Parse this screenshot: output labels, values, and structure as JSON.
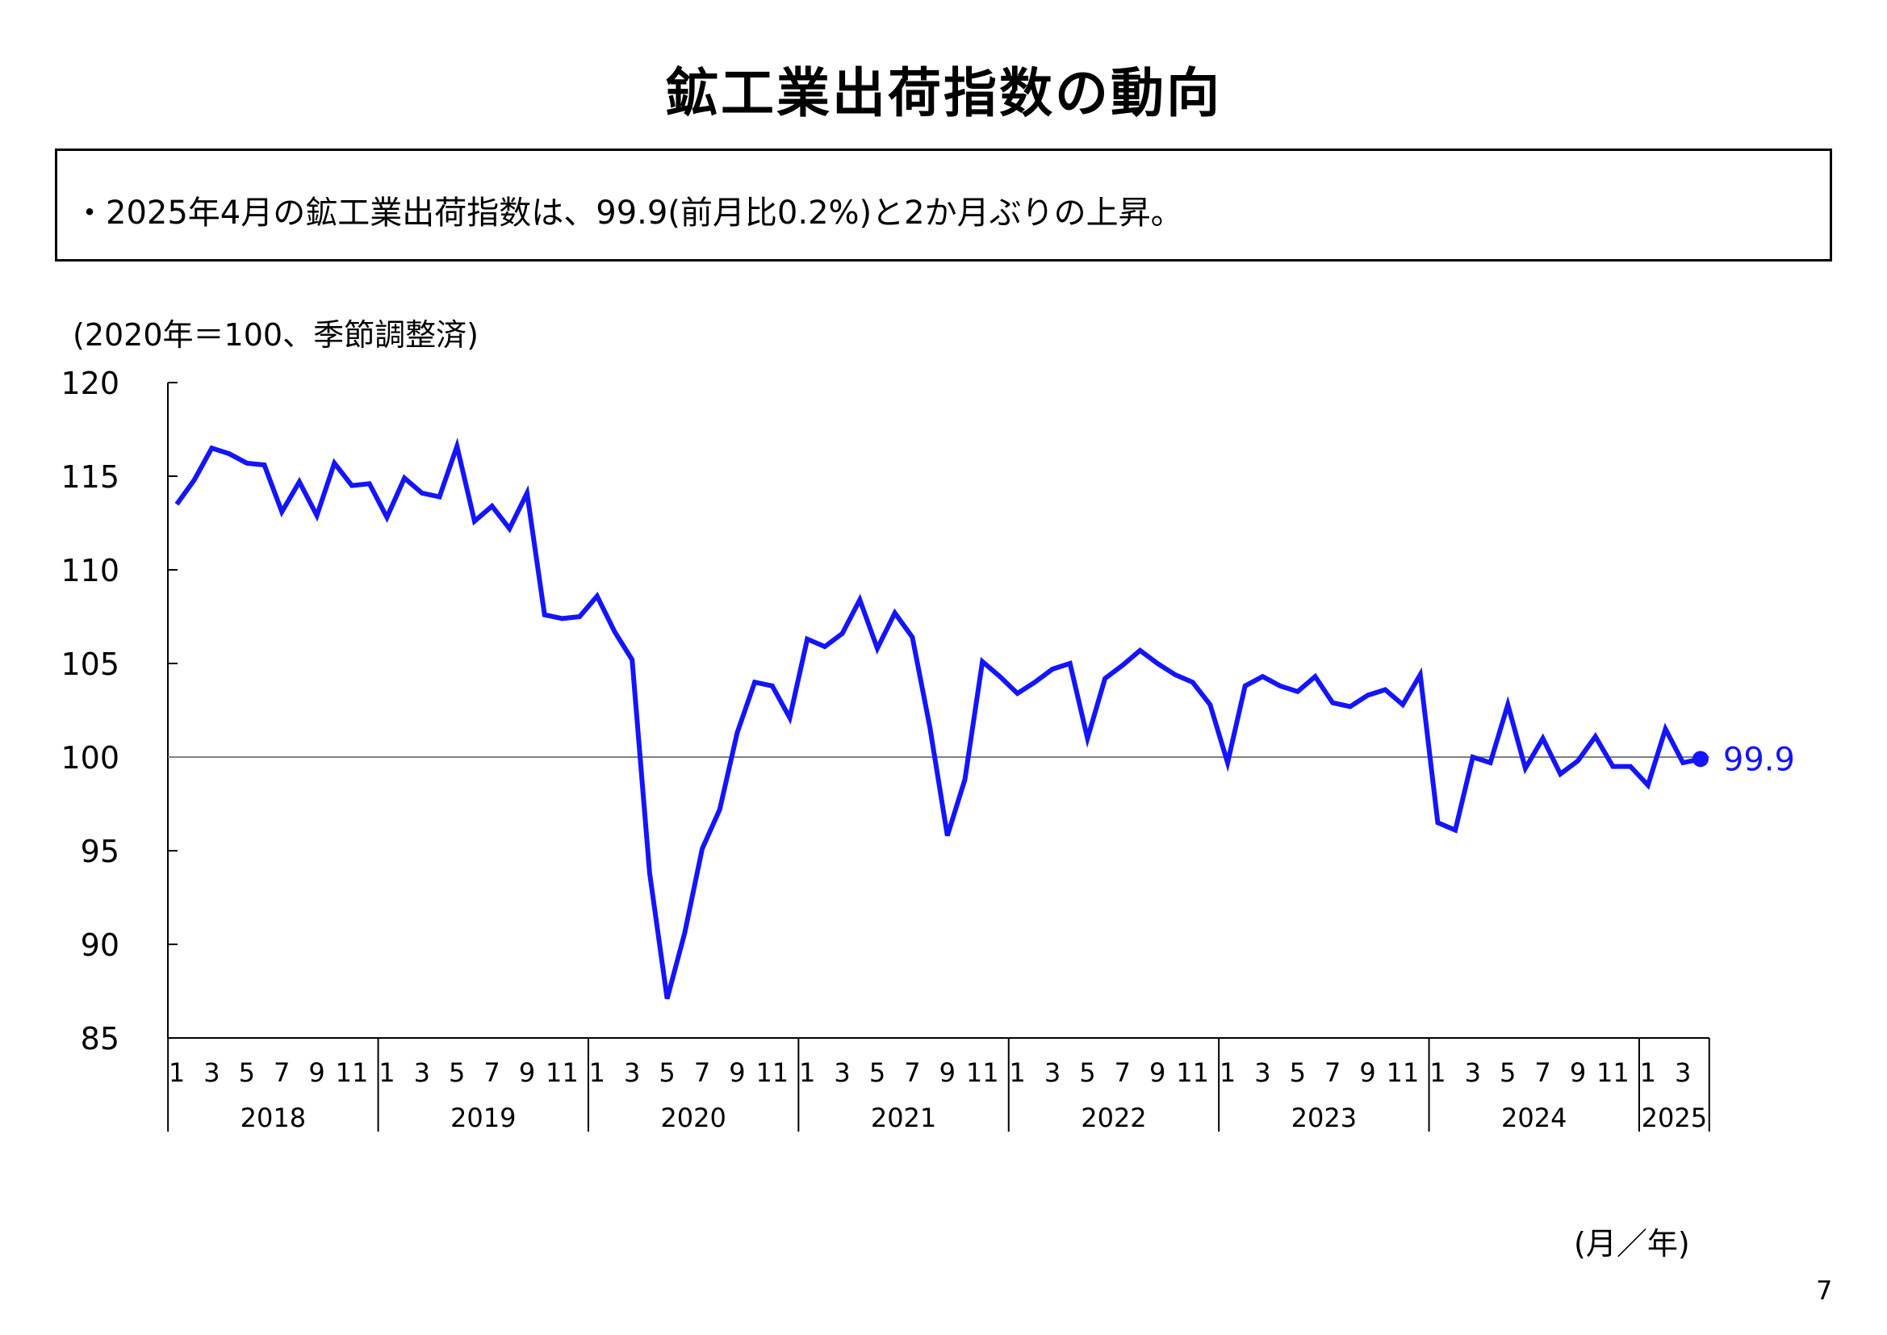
{
  "page": {
    "title": "鉱工業出荷指数の動向",
    "summary": "・2025年4月の鉱工業出荷指数は、99.9(前月比0.2%)と2か月ぶりの上昇。",
    "unit_note": "(2020年＝100、季節調整済)",
    "x_axis_unit": "(月／年)",
    "page_number": "7"
  },
  "chart_data": {
    "type": "line",
    "title": "",
    "ylim": [
      85,
      120
    ],
    "y_ticks": [
      85,
      90,
      95,
      100,
      105,
      110,
      115,
      120
    ],
    "reference_line": 100,
    "years": [
      "2018",
      "2019",
      "2020",
      "2021",
      "2022",
      "2023",
      "2024",
      "2025"
    ],
    "month_tick_labels": [
      "1",
      "3",
      "5",
      "7",
      "9",
      "11"
    ],
    "last_value_label": "99.9",
    "line_color": "#1414ff",
    "reference_color": "#808080",
    "series": [
      {
        "values": [
          113.5,
          114.8,
          116.5,
          116.2,
          115.7,
          115.6,
          113.1,
          114.7,
          112.9,
          115.7,
          114.5,
          114.6,
          112.8,
          114.9,
          114.1,
          113.9,
          116.6,
          112.6,
          113.4,
          112.2,
          114.1,
          107.6,
          107.4,
          107.5,
          108.6,
          106.7,
          105.2,
          93.8,
          87.1,
          90.6,
          95.1,
          97.2,
          101.3,
          104.0,
          103.8,
          102.1,
          106.3,
          105.9,
          106.6,
          108.4,
          105.8,
          107.7,
          106.4,
          101.6,
          95.8,
          98.8,
          105.1,
          104.3,
          103.4,
          104.0,
          104.7,
          105.0,
          101.0,
          104.2,
          104.9,
          105.7,
          105.0,
          104.4,
          104.0,
          102.8,
          99.7,
          103.8,
          104.3,
          103.8,
          103.5,
          104.3,
          102.9,
          102.7,
          103.3,
          103.6,
          102.8,
          104.4,
          96.5,
          96.1,
          100.0,
          99.7,
          102.8,
          99.4,
          101.0,
          99.1,
          99.8,
          101.1,
          99.5,
          99.5,
          98.5,
          101.5,
          99.7,
          99.9
        ]
      }
    ]
  }
}
